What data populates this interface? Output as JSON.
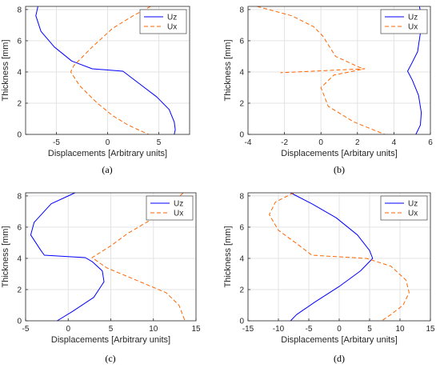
{
  "chart_data": [
    {
      "type": "line",
      "caption": "(a)",
      "xlabel": "Displacements [Arbitrary units]",
      "ylabel": "Thickness [mm]",
      "xlim": [
        -8,
        8
      ],
      "ylim": [
        0,
        8.2
      ],
      "xticks": [
        -5,
        0,
        5
      ],
      "yticks": [
        0,
        2,
        4,
        6,
        8
      ],
      "grid": true,
      "legend_position": "top-right",
      "series": [
        {
          "name": "Uz",
          "color": "#0000ff",
          "dash": "solid",
          "x": [
            -6.8,
            -7.0,
            -6.5,
            -5.2,
            -3.5,
            -1.5,
            1.5,
            3.0,
            4.8,
            6.0,
            6.5,
            6.6,
            6.5
          ],
          "y": [
            8.2,
            7.6,
            6.6,
            5.6,
            4.7,
            4.2,
            4.05,
            3.3,
            2.4,
            1.6,
            0.8,
            0.3,
            0
          ]
        },
        {
          "name": "Ux",
          "color": "#ff6600",
          "dash": "dashed",
          "x": [
            4.2,
            2.5,
            0.5,
            -1.5,
            -3.3,
            -3.6,
            -2.7,
            -1.0,
            0.5,
            2.0,
            3.5,
            4.0
          ],
          "y": [
            8.2,
            7.6,
            6.8,
            5.6,
            4.4,
            4.0,
            3.1,
            2.0,
            1.2,
            0.6,
            0.15,
            0
          ]
        }
      ]
    },
    {
      "type": "line",
      "caption": "(b)",
      "xlabel": "Displacements [Arbitary units]",
      "ylabel": "Thickness [mm]",
      "xlim": [
        -4,
        6
      ],
      "ylim": [
        0,
        8.2
      ],
      "xticks": [
        -4,
        -2,
        0,
        2,
        4,
        6
      ],
      "yticks": [
        0,
        2,
        4,
        6,
        8
      ],
      "grid": true,
      "legend_position": "top-right",
      "series": [
        {
          "name": "Uz",
          "color": "#0000ff",
          "dash": "solid",
          "x": [
            5.4,
            5.5,
            5.45,
            5.3,
            5.0,
            4.75,
            5.0,
            5.35,
            5.5,
            5.45,
            5.2
          ],
          "y": [
            8.2,
            7.6,
            6.5,
            5.3,
            4.6,
            4.05,
            3.5,
            2.5,
            1.4,
            0.6,
            0
          ]
        },
        {
          "name": "Ux",
          "color": "#ff6600",
          "dash": "dashed",
          "x": [
            -3.5,
            -1.6,
            -0.4,
            0.1,
            0.8,
            2.1,
            2.4,
            -2.2,
            2.4,
            0.7,
            0.0,
            0.4,
            1.8,
            3.5
          ],
          "y": [
            8.2,
            7.6,
            6.9,
            6.3,
            5.0,
            4.3,
            4.2,
            3.95,
            4.2,
            3.8,
            3.0,
            1.8,
            0.8,
            0
          ]
        }
      ]
    },
    {
      "type": "line",
      "caption": "(c)",
      "xlabel": "Displacements [Arbitrary units]",
      "ylabel": "Thickness [mm]",
      "xlim": [
        -5,
        15
      ],
      "ylim": [
        0,
        8.2
      ],
      "xticks": [
        -5,
        0,
        5,
        10,
        15
      ],
      "yticks": [
        0,
        2,
        4,
        6,
        8
      ],
      "grid": true,
      "legend_position": "top-right",
      "series": [
        {
          "name": "Uz",
          "color": "#0000ff",
          "dash": "solid",
          "x": [
            0.8,
            -2.0,
            -4.0,
            -4.4,
            -3.2,
            -2.8,
            2.0,
            2.8,
            4.0,
            4.2,
            3.0,
            0.5,
            -1.3
          ],
          "y": [
            8.2,
            7.5,
            6.3,
            5.5,
            4.5,
            4.2,
            4.05,
            3.8,
            3.2,
            2.5,
            1.5,
            0.6,
            0
          ]
        },
        {
          "name": "Ux",
          "color": "#ff6600",
          "dash": "dashed",
          "x": [
            13.5,
            12.0,
            9.5,
            7.0,
            5.0,
            2.8,
            4.5,
            8.0,
            11.5,
            13.0,
            13.7
          ],
          "y": [
            8.2,
            7.4,
            6.4,
            5.6,
            4.8,
            4.05,
            3.4,
            2.6,
            1.8,
            1.0,
            0
          ]
        }
      ]
    },
    {
      "type": "line",
      "caption": "(d)",
      "xlabel": "Displacements [Arbitary units]",
      "ylabel": "Thickness [mm]",
      "xlim": [
        -15,
        15
      ],
      "ylim": [
        0,
        8.2
      ],
      "xticks": [
        -15,
        -10,
        -5,
        0,
        5,
        10,
        15
      ],
      "yticks": [
        0,
        2,
        4,
        6,
        8
      ],
      "grid": true,
      "legend_position": "top-right",
      "series": [
        {
          "name": "Uz",
          "color": "#0000ff",
          "dash": "solid",
          "x": [
            -8.0,
            -4.5,
            -0.5,
            3.0,
            5.0,
            5.5,
            3.5,
            0.0,
            -4.0,
            -7.0,
            -8.0
          ],
          "y": [
            8.2,
            7.5,
            6.6,
            5.5,
            4.5,
            4.0,
            3.2,
            2.2,
            1.2,
            0.4,
            0
          ]
        },
        {
          "name": "Ux",
          "color": "#ff6600",
          "dash": "dashed",
          "x": [
            -7.5,
            -10.5,
            -11.5,
            -10.0,
            -6.5,
            -4.5,
            4.5,
            8.5,
            11.0,
            11.5,
            10.5,
            8.5,
            7.0
          ],
          "y": [
            8.2,
            7.6,
            6.8,
            5.8,
            4.8,
            4.2,
            4.0,
            3.5,
            2.6,
            1.8,
            1.0,
            0.4,
            0
          ]
        }
      ]
    }
  ]
}
